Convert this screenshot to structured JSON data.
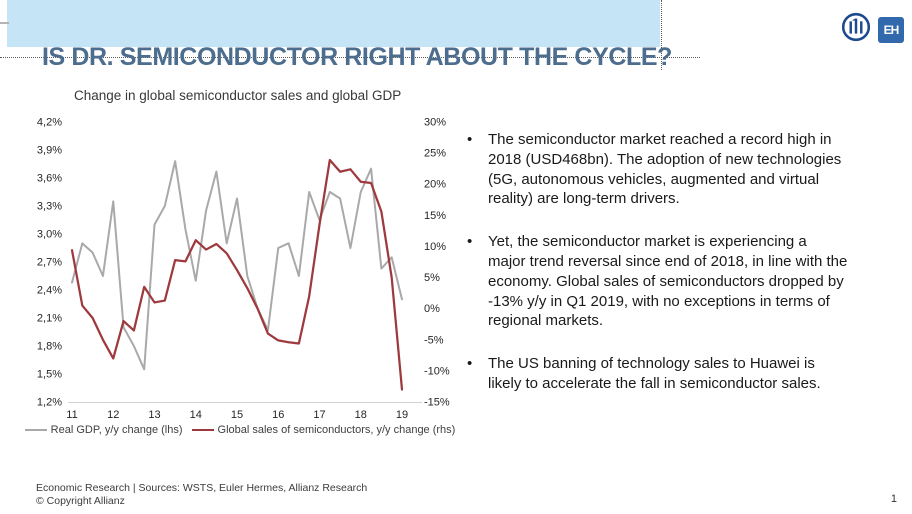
{
  "slide": {
    "title": "IS DR. SEMICONDUCTOR RIGHT ABOUT THE CYCLE?",
    "page_number": "1"
  },
  "logos": {
    "eh_label": "EH",
    "allianz_blue": "#1d4a8f",
    "eh_bg": "#3169ac"
  },
  "header": {
    "band_color": "#c5e5f6"
  },
  "chart": {
    "title": "Change in global semiconductor sales and global GDP"
  },
  "chart_data": {
    "type": "line",
    "title": "Change in global semiconductor sales and global GDP",
    "x_period": "2011Q1 to 2019Q1, quarterly",
    "x_tick_labels": [
      "11",
      "12",
      "13",
      "14",
      "15",
      "16",
      "17",
      "18",
      "19"
    ],
    "left_axis": {
      "tick_labels": [
        "4,2%",
        "3,9%",
        "3,6%",
        "3,3%",
        "3,0%",
        "2,7%",
        "2,4%",
        "2,1%",
        "1,8%",
        "1,5%",
        "1,2%"
      ],
      "max": 4.2,
      "min": 1.2
    },
    "right_axis": {
      "tick_labels": [
        "30%",
        "25%",
        "20%",
        "15%",
        "10%",
        "5%",
        "0%",
        "-5%",
        "-10%",
        "-15%"
      ],
      "max": 30,
      "min": -15
    },
    "grid": false,
    "legend_position": "bottom",
    "series": [
      {
        "name": "Real GDP, y/y change (lhs)",
        "axis": "left",
        "color": "#a9a9a9",
        "values": [
          2.48,
          2.9,
          2.8,
          2.55,
          3.35,
          2.0,
          1.8,
          1.55,
          3.1,
          3.3,
          3.78,
          3.05,
          2.5,
          3.25,
          3.67,
          2.9,
          3.38,
          2.55,
          2.2,
          1.97,
          2.85,
          2.9,
          2.55,
          3.45,
          3.15,
          3.45,
          3.38,
          2.85,
          3.45,
          3.7,
          2.63,
          2.75,
          2.3
        ]
      },
      {
        "name": "Global sales of semiconductors, y/y change (rhs)",
        "axis": "right",
        "color": "#9e3a3e",
        "values": [
          9.4,
          0.5,
          -1.5,
          -5,
          -8,
          -2,
          -3.5,
          3.5,
          1,
          1.3,
          7.8,
          7.6,
          11,
          9.5,
          10.4,
          8.9,
          6.2,
          3.3,
          0,
          -4,
          -5.1,
          -5.4,
          -5.6,
          2,
          13.5,
          23.9,
          22,
          22.4,
          20.4,
          20.2,
          15.6,
          5,
          -13
        ]
      }
    ]
  },
  "bullets": {
    "marker": "•",
    "items": [
      "The semiconductor market reached a record high in 2018 (USD468bn). The adoption of new technologies (5G, autonomous vehicles, augmented and virtual reality) are long-term drivers.",
      "Yet, the semiconductor market is experiencing a major trend reversal since end of 2018, in line with the economy. Global sales of semiconductors dropped by -13% y/y in Q1 2019, with no exceptions in terms of regional markets.",
      "The US banning of technology sales to Huawei is likely to accelerate the fall in semiconductor sales."
    ]
  },
  "footer": {
    "line1": "Economic Research | Sources: WSTS, Euler Hermes, Allianz Research",
    "line2": "© Copyright Allianz"
  }
}
